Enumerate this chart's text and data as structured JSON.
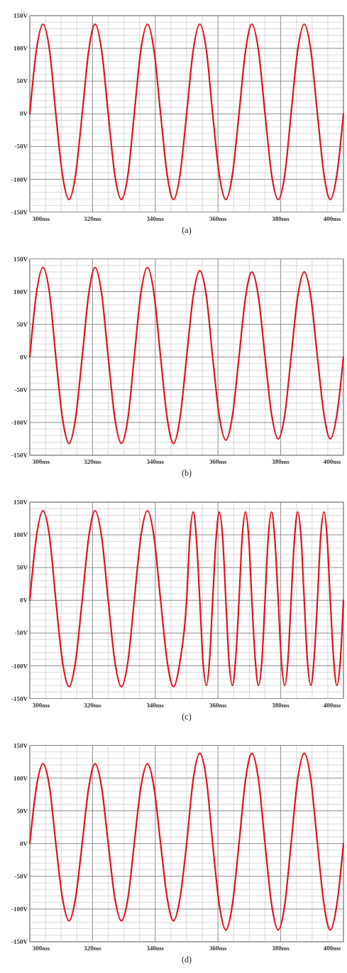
{
  "chart_data": [
    {
      "type": "line",
      "title": "(a)",
      "grid": true,
      "xlim": [
        300,
        400
      ],
      "ylim": [
        -150,
        150
      ],
      "xticks": [
        {
          "value": 300,
          "label": "300ms"
        },
        {
          "value": 305,
          "label": null
        },
        {
          "value": 310,
          "label": null
        },
        {
          "value": 315,
          "label": null
        },
        {
          "value": 320,
          "label": "320ms"
        },
        {
          "value": 325,
          "label": null
        },
        {
          "value": 330,
          "label": null
        },
        {
          "value": 335,
          "label": null
        },
        {
          "value": 340,
          "label": "340ms"
        },
        {
          "value": 345,
          "label": null
        },
        {
          "value": 350,
          "label": null
        },
        {
          "value": 355,
          "label": null
        },
        {
          "value": 360,
          "label": "360ms"
        },
        {
          "value": 365,
          "label": null
        },
        {
          "value": 370,
          "label": null
        },
        {
          "value": 375,
          "label": null
        },
        {
          "value": 380,
          "label": "380ms"
        },
        {
          "value": 385,
          "label": null
        },
        {
          "value": 390,
          "label": null
        },
        {
          "value": 395,
          "label": null
        },
        {
          "value": 400,
          "label": "400ms"
        }
      ],
      "yticks": [
        {
          "value": -150,
          "label": "-150V"
        },
        {
          "value": -140,
          "label": null
        },
        {
          "value": -130,
          "label": null
        },
        {
          "value": -120,
          "label": null
        },
        {
          "value": -110,
          "label": null
        },
        {
          "value": -100,
          "label": "-100V"
        },
        {
          "value": -90,
          "label": null
        },
        {
          "value": -80,
          "label": null
        },
        {
          "value": -70,
          "label": null
        },
        {
          "value": -60,
          "label": null
        },
        {
          "value": -50,
          "label": "-50V"
        },
        {
          "value": -40,
          "label": null
        },
        {
          "value": -30,
          "label": null
        },
        {
          "value": -20,
          "label": null
        },
        {
          "value": -10,
          "label": null
        },
        {
          "value": 0,
          "label": "0V"
        },
        {
          "value": 10,
          "label": null
        },
        {
          "value": 20,
          "label": null
        },
        {
          "value": 30,
          "label": null
        },
        {
          "value": 40,
          "label": null
        },
        {
          "value": 50,
          "label": "50V"
        },
        {
          "value": 60,
          "label": null
        },
        {
          "value": 70,
          "label": null
        },
        {
          "value": 80,
          "label": null
        },
        {
          "value": 90,
          "label": null
        },
        {
          "value": 100,
          "label": "100V"
        },
        {
          "value": 110,
          "label": null
        },
        {
          "value": 120,
          "label": null
        },
        {
          "value": 130,
          "label": null
        },
        {
          "value": 140,
          "label": null
        },
        {
          "value": 150,
          "label": "150V"
        }
      ],
      "series": [
        {
          "color": "#e3121c",
          "x": [
            300,
            302.1,
            304.2,
            306.3,
            308.3,
            310.4,
            312.5,
            314.6,
            316.7,
            318.8,
            320.8,
            322.9,
            325,
            327.1,
            329.2,
            331.3,
            333.3,
            335.4,
            337.5,
            339.6,
            341.7,
            343.8,
            345.8,
            347.9,
            350,
            352.1,
            354.2,
            356.3,
            358.3,
            360.4,
            362.5,
            364.6,
            366.7,
            368.8,
            370.8,
            372.9,
            375,
            377.1,
            379.2,
            381.3,
            383.3,
            385.4,
            387.5,
            389.6,
            391.7,
            393.8,
            395.8,
            397.9,
            400
          ],
          "values": [
            0,
            97,
            137,
            97,
            0,
            -93,
            -131,
            -93,
            0,
            97,
            137,
            97,
            0,
            -93,
            -131,
            -93,
            0,
            97,
            137,
            97,
            0,
            -93,
            -131,
            -93,
            0,
            97,
            137,
            97,
            0,
            -93,
            -131,
            -93,
            0,
            97,
            137,
            97,
            0,
            -93,
            -131,
            -93,
            0,
            97,
            137,
            97,
            0,
            -93,
            -131,
            -93,
            0
          ]
        }
      ]
    },
    {
      "type": "line",
      "title": "(b)",
      "grid": true,
      "xlim": [
        300,
        400
      ],
      "ylim": [
        -150,
        150
      ],
      "xticks": [
        {
          "value": 300,
          "label": "300ms"
        },
        {
          "value": 305,
          "label": null
        },
        {
          "value": 310,
          "label": null
        },
        {
          "value": 315,
          "label": null
        },
        {
          "value": 320,
          "label": "320ms"
        },
        {
          "value": 325,
          "label": null
        },
        {
          "value": 330,
          "label": null
        },
        {
          "value": 335,
          "label": null
        },
        {
          "value": 340,
          "label": "340ms"
        },
        {
          "value": 345,
          "label": null
        },
        {
          "value": 350,
          "label": null
        },
        {
          "value": 355,
          "label": null
        },
        {
          "value": 360,
          "label": "360ms"
        },
        {
          "value": 365,
          "label": null
        },
        {
          "value": 370,
          "label": null
        },
        {
          "value": 375,
          "label": null
        },
        {
          "value": 380,
          "label": "380ms"
        },
        {
          "value": 385,
          "label": null
        },
        {
          "value": 390,
          "label": null
        },
        {
          "value": 395,
          "label": null
        },
        {
          "value": 400,
          "label": "400ms"
        }
      ],
      "yticks": [
        {
          "value": -150,
          "label": "-150V"
        },
        {
          "value": -140,
          "label": null
        },
        {
          "value": -130,
          "label": null
        },
        {
          "value": -120,
          "label": null
        },
        {
          "value": -110,
          "label": null
        },
        {
          "value": -100,
          "label": "-100V"
        },
        {
          "value": -90,
          "label": null
        },
        {
          "value": -80,
          "label": null
        },
        {
          "value": -70,
          "label": null
        },
        {
          "value": -60,
          "label": null
        },
        {
          "value": -50,
          "label": "-50V"
        },
        {
          "value": -40,
          "label": null
        },
        {
          "value": -30,
          "label": null
        },
        {
          "value": -20,
          "label": null
        },
        {
          "value": -10,
          "label": null
        },
        {
          "value": 0,
          "label": "0V"
        },
        {
          "value": 10,
          "label": null
        },
        {
          "value": 20,
          "label": null
        },
        {
          "value": 30,
          "label": null
        },
        {
          "value": 40,
          "label": null
        },
        {
          "value": 50,
          "label": "50V"
        },
        {
          "value": 60,
          "label": null
        },
        {
          "value": 70,
          "label": null
        },
        {
          "value": 80,
          "label": null
        },
        {
          "value": 90,
          "label": null
        },
        {
          "value": 100,
          "label": "100V"
        },
        {
          "value": 110,
          "label": null
        },
        {
          "value": 120,
          "label": null
        },
        {
          "value": 130,
          "label": null
        },
        {
          "value": 140,
          "label": null
        },
        {
          "value": 150,
          "label": "150V"
        }
      ],
      "series": [
        {
          "color": "#e3121c",
          "x": [
            300,
            302.1,
            304.2,
            306.3,
            308.3,
            310.4,
            312.5,
            314.6,
            316.7,
            318.8,
            320.8,
            322.9,
            325,
            327.1,
            329.2,
            331.3,
            333.3,
            335.4,
            337.5,
            339.6,
            341.7,
            343.8,
            345.8,
            347.9,
            350,
            352.1,
            354.2,
            356.3,
            358.3,
            360.4,
            362.5,
            364.6,
            366.7,
            368.8,
            370.8,
            372.9,
            375,
            377.1,
            379.2,
            381.3,
            383.3,
            385.4,
            387.5,
            389.6,
            391.7,
            393.8,
            395.8,
            397.9,
            400
          ],
          "values": [
            0,
            97,
            137,
            97,
            0,
            -93,
            -132,
            -93,
            0,
            97,
            137,
            97,
            0,
            -93,
            -132,
            -93,
            0,
            97,
            137,
            97,
            0,
            -93,
            -132,
            -93,
            0,
            93,
            132,
            93,
            0,
            -90,
            -127,
            -90,
            0,
            92,
            130,
            92,
            0,
            -88,
            -125,
            -88,
            0,
            92,
            130,
            92,
            0,
            -88,
            -125,
            -88,
            0
          ]
        }
      ]
    },
    {
      "type": "line",
      "title": "(c)",
      "grid": true,
      "xlim": [
        300,
        400
      ],
      "ylim": [
        -150,
        150
      ],
      "xticks": [
        {
          "value": 300,
          "label": "300ms"
        },
        {
          "value": 305,
          "label": null
        },
        {
          "value": 310,
          "label": null
        },
        {
          "value": 315,
          "label": null
        },
        {
          "value": 320,
          "label": "320ms"
        },
        {
          "value": 325,
          "label": null
        },
        {
          "value": 330,
          "label": null
        },
        {
          "value": 335,
          "label": null
        },
        {
          "value": 340,
          "label": "340ms"
        },
        {
          "value": 345,
          "label": null
        },
        {
          "value": 350,
          "label": null
        },
        {
          "value": 355,
          "label": null
        },
        {
          "value": 360,
          "label": "360ms"
        },
        {
          "value": 365,
          "label": null
        },
        {
          "value": 370,
          "label": null
        },
        {
          "value": 375,
          "label": null
        },
        {
          "value": 380,
          "label": "380ms"
        },
        {
          "value": 385,
          "label": null
        },
        {
          "value": 390,
          "label": null
        },
        {
          "value": 395,
          "label": null
        },
        {
          "value": 400,
          "label": "400ms"
        }
      ],
      "yticks": [
        {
          "value": -150,
          "label": "-150V"
        },
        {
          "value": -140,
          "label": null
        },
        {
          "value": -130,
          "label": null
        },
        {
          "value": -120,
          "label": null
        },
        {
          "value": -110,
          "label": null
        },
        {
          "value": -100,
          "label": "-100V"
        },
        {
          "value": -90,
          "label": null
        },
        {
          "value": -80,
          "label": null
        },
        {
          "value": -70,
          "label": null
        },
        {
          "value": -60,
          "label": null
        },
        {
          "value": -50,
          "label": "-50V"
        },
        {
          "value": -40,
          "label": null
        },
        {
          "value": -30,
          "label": null
        },
        {
          "value": -20,
          "label": null
        },
        {
          "value": -10,
          "label": null
        },
        {
          "value": 0,
          "label": "0V"
        },
        {
          "value": 10,
          "label": null
        },
        {
          "value": 20,
          "label": null
        },
        {
          "value": 30,
          "label": null
        },
        {
          "value": 40,
          "label": null
        },
        {
          "value": 50,
          "label": "50V"
        },
        {
          "value": 60,
          "label": null
        },
        {
          "value": 70,
          "label": null
        },
        {
          "value": 80,
          "label": null
        },
        {
          "value": 90,
          "label": null
        },
        {
          "value": 100,
          "label": "100V"
        },
        {
          "value": 110,
          "label": null
        },
        {
          "value": 120,
          "label": null
        },
        {
          "value": 130,
          "label": null
        },
        {
          "value": 140,
          "label": null
        },
        {
          "value": 150,
          "label": "150V"
        }
      ],
      "series": [
        {
          "color": "#e3121c",
          "x": [
            300,
            302.1,
            304.2,
            306.3,
            308.3,
            310.4,
            312.5,
            314.6,
            316.7,
            318.8,
            320.8,
            322.9,
            325,
            327.1,
            329.2,
            331.3,
            333.3,
            335.4,
            337.5,
            339.6,
            341.7,
            343.8,
            345.8,
            347.9,
            350,
            351.0,
            352.1,
            353.1,
            354.2,
            355.2,
            356.3,
            357.3,
            358.3,
            359.4,
            360.4,
            361.5,
            362.5,
            363.5,
            364.6,
            365.6,
            366.7,
            367.7,
            368.8,
            369.8,
            370.8,
            371.9,
            372.9,
            374.0,
            375,
            376.0,
            377.1,
            378.1,
            379.2,
            380.2,
            381.3,
            382.3,
            383.3,
            384.4,
            385.4,
            386.5,
            387.5,
            388.5,
            389.6,
            390.6,
            391.7,
            392.7,
            393.8,
            394.8,
            395.8,
            396.9,
            397.9,
            399.0,
            400
          ],
          "values": [
            0,
            97,
            137,
            97,
            0,
            -93,
            -132,
            -93,
            0,
            97,
            137,
            97,
            0,
            -93,
            -132,
            -93,
            0,
            97,
            137,
            97,
            0,
            -93,
            -132,
            -93,
            0,
            95,
            135,
            95,
            0,
            -92,
            -130,
            -92,
            0,
            95,
            135,
            95,
            0,
            -92,
            -130,
            -92,
            0,
            95,
            135,
            95,
            0,
            -92,
            -130,
            -92,
            0,
            95,
            135,
            95,
            0,
            -92,
            -130,
            -92,
            0,
            95,
            135,
            95,
            0,
            -92,
            -130,
            -92,
            0,
            95,
            135,
            95,
            0,
            -92,
            -130,
            -92,
            0
          ]
        }
      ]
    },
    {
      "type": "line",
      "title": "(d)",
      "grid": true,
      "xlim": [
        300,
        400
      ],
      "ylim": [
        -150,
        150
      ],
      "xticks": [
        {
          "value": 300,
          "label": "300ms"
        },
        {
          "value": 305,
          "label": null
        },
        {
          "value": 310,
          "label": null
        },
        {
          "value": 315,
          "label": null
        },
        {
          "value": 320,
          "label": "320ms"
        },
        {
          "value": 325,
          "label": null
        },
        {
          "value": 330,
          "label": null
        },
        {
          "value": 335,
          "label": null
        },
        {
          "value": 340,
          "label": "340ms"
        },
        {
          "value": 345,
          "label": null
        },
        {
          "value": 350,
          "label": null
        },
        {
          "value": 355,
          "label": null
        },
        {
          "value": 360,
          "label": "360ms"
        },
        {
          "value": 365,
          "label": null
        },
        {
          "value": 370,
          "label": null
        },
        {
          "value": 375,
          "label": null
        },
        {
          "value": 380,
          "label": "380ms"
        },
        {
          "value": 385,
          "label": null
        },
        {
          "value": 390,
          "label": null
        },
        {
          "value": 395,
          "label": null
        },
        {
          "value": 400,
          "label": "400ms"
        }
      ],
      "yticks": [
        {
          "value": -150,
          "label": "-150V"
        },
        {
          "value": -140,
          "label": null
        },
        {
          "value": -130,
          "label": null
        },
        {
          "value": -120,
          "label": null
        },
        {
          "value": -110,
          "label": null
        },
        {
          "value": -100,
          "label": "-100V"
        },
        {
          "value": -90,
          "label": null
        },
        {
          "value": -80,
          "label": null
        },
        {
          "value": -70,
          "label": null
        },
        {
          "value": -60,
          "label": null
        },
        {
          "value": -50,
          "label": "-50V"
        },
        {
          "value": -40,
          "label": null
        },
        {
          "value": -30,
          "label": null
        },
        {
          "value": -20,
          "label": null
        },
        {
          "value": -10,
          "label": null
        },
        {
          "value": 0,
          "label": "0V"
        },
        {
          "value": 10,
          "label": null
        },
        {
          "value": 20,
          "label": null
        },
        {
          "value": 30,
          "label": null
        },
        {
          "value": 40,
          "label": null
        },
        {
          "value": 50,
          "label": "50V"
        },
        {
          "value": 60,
          "label": null
        },
        {
          "value": 70,
          "label": null
        },
        {
          "value": 80,
          "label": null
        },
        {
          "value": 90,
          "label": null
        },
        {
          "value": 100,
          "label": "100V"
        },
        {
          "value": 110,
          "label": null
        },
        {
          "value": 120,
          "label": null
        },
        {
          "value": 130,
          "label": null
        },
        {
          "value": 140,
          "label": null
        },
        {
          "value": 150,
          "label": "150V"
        }
      ],
      "series": [
        {
          "color": "#e3121c",
          "x": [
            300,
            302.1,
            304.2,
            306.3,
            308.3,
            310.4,
            312.5,
            314.6,
            316.7,
            318.8,
            320.8,
            322.9,
            325,
            327.1,
            329.2,
            331.3,
            333.3,
            335.4,
            337.5,
            339.6,
            341.7,
            343.8,
            345.8,
            347.9,
            350,
            352.1,
            354.2,
            356.3,
            358.3,
            360.4,
            362.5,
            364.6,
            366.7,
            368.8,
            370.8,
            372.9,
            375,
            377.1,
            379.2,
            381.3,
            383.3,
            385.4,
            387.5,
            389.6,
            391.7,
            393.8,
            395.8,
            397.9,
            400
          ],
          "values": [
            0,
            86,
            122,
            86,
            0,
            -83,
            -118,
            -83,
            0,
            86,
            122,
            86,
            0,
            -83,
            -118,
            -83,
            0,
            86,
            122,
            86,
            0,
            -83,
            -118,
            -83,
            0,
            98,
            138,
            98,
            0,
            -93,
            -132,
            -93,
            0,
            98,
            138,
            98,
            0,
            -93,
            -132,
            -93,
            0,
            98,
            138,
            98,
            0,
            -93,
            -132,
            -93,
            0
          ]
        }
      ]
    }
  ]
}
